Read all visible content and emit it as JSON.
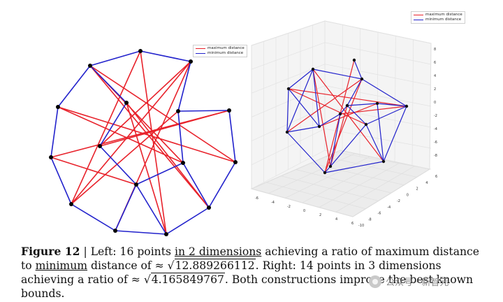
{
  "left_figure": {
    "legend": [
      {
        "label": "maximum distance",
        "color": "#e8222b"
      },
      {
        "label": "minimum distance",
        "color": "#2222cc"
      }
    ]
  },
  "right_figure": {
    "legend": [
      {
        "label": "maximum distance",
        "color": "#e8222b"
      },
      {
        "label": "minimum distance",
        "color": "#2222cc"
      }
    ],
    "x_ticks": [
      "-6",
      "-4",
      "-2",
      "0",
      "2",
      "4",
      "6"
    ],
    "y_ticks": [
      "-10",
      "-8",
      "-6",
      "-4",
      "-2",
      "0",
      "2",
      "4",
      "6"
    ],
    "z_ticks": [
      "8",
      "6",
      "4",
      "2",
      "0",
      "-2",
      "-4",
      "-6",
      "-8"
    ]
  },
  "caption": {
    "label": "Figure 12",
    "sep": " | ",
    "part1": "Left:  16 points ",
    "part2": "in 2 dimensions",
    "part3": " achieving a ratio of maximum distance to ",
    "part4": "minimum",
    "part5": " distance of ≈ ",
    "sqrt1": "12.889266112",
    "part6": ". Right: 14 points in 3 dimensions achieving a ratio of ≈ ",
    "sqrt2": "4.165849767",
    "part7": ". Both constructions improve the best known bounds."
  },
  "watermark": {
    "text": "公众号 · 新智元"
  }
}
